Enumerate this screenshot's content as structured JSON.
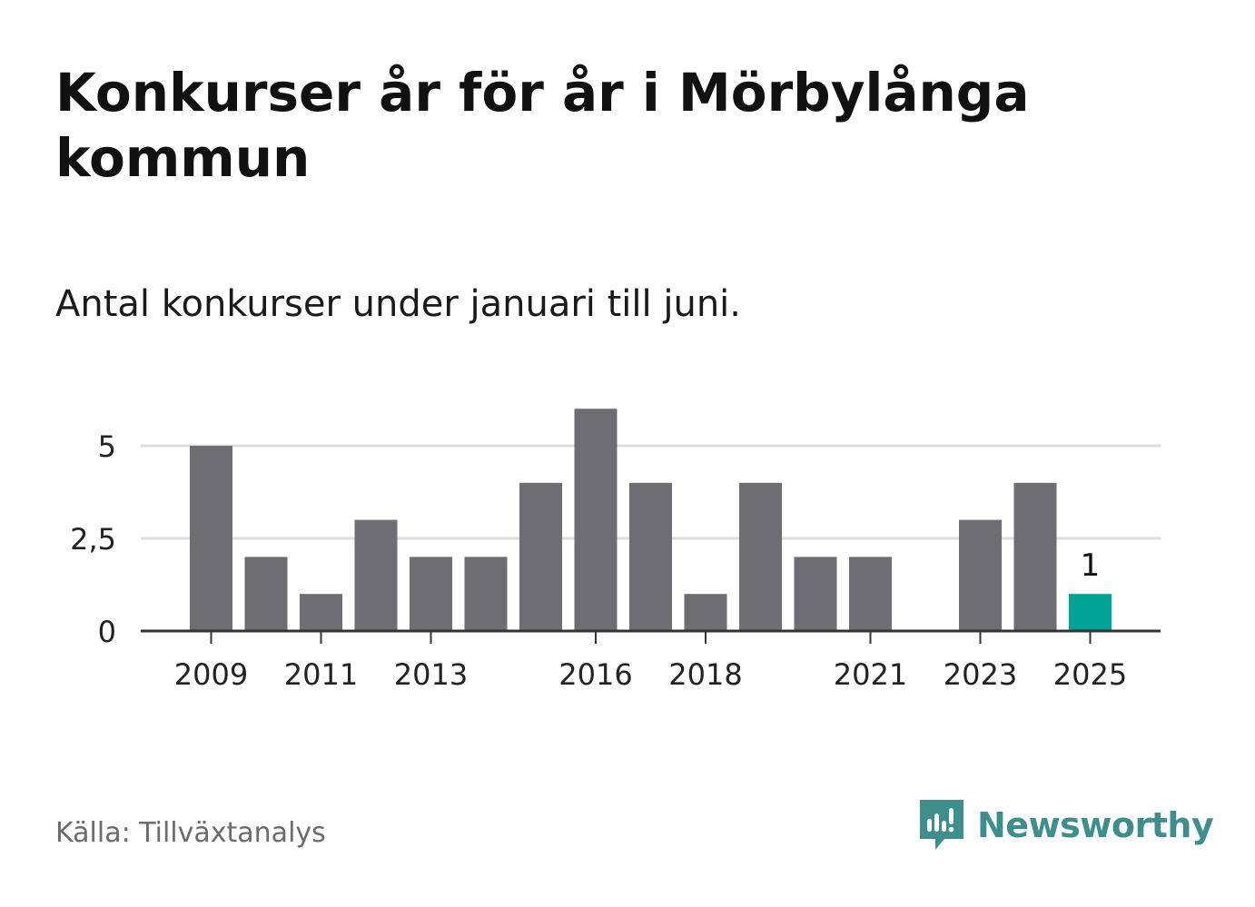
{
  "title": "Konkurser år för år i Mörbylånga kommun",
  "subtitle": "Antal konkurser under januari till juni.",
  "source": "Källa: Tillväxtanalys",
  "brand": {
    "name": "Newsworthy",
    "icon": "newsworthy-logo-icon",
    "color": "#3d8f8b"
  },
  "colors": {
    "bar": "#6e6d72",
    "highlight": "#00a396",
    "grid": "#dddddd",
    "axis": "#333333"
  },
  "chart_data": {
    "type": "bar",
    "categories": [
      2009,
      2010,
      2011,
      2012,
      2013,
      2014,
      2015,
      2016,
      2017,
      2018,
      2019,
      2020,
      2021,
      2022,
      2023,
      2024,
      2025
    ],
    "values": [
      5,
      2,
      1,
      3,
      2,
      2,
      4,
      6,
      4,
      1,
      4,
      2,
      2,
      0,
      3,
      4,
      1
    ],
    "highlight_index": 16,
    "data_labels": [
      {
        "index": 16,
        "text": "1"
      }
    ],
    "x_tick_labels": [
      "2009",
      "2011",
      "2013",
      "2016",
      "2018",
      "2021",
      "2023",
      "2025"
    ],
    "y_ticks": [
      0,
      2.5,
      5
    ],
    "y_tick_labels": [
      "0",
      "2,5",
      "5"
    ],
    "ylim": [
      0,
      6
    ],
    "grid": true,
    "xlabel": "",
    "ylabel": ""
  }
}
